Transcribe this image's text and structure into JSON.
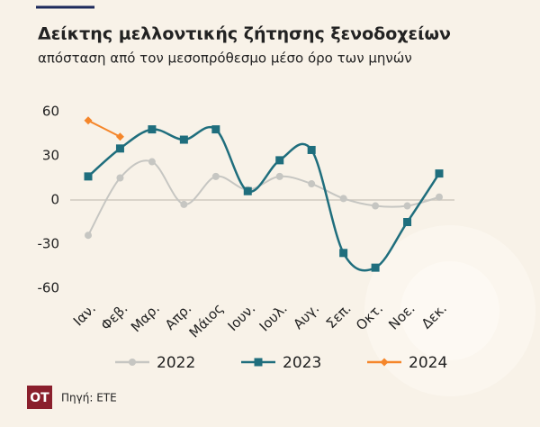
{
  "chart_data": {
    "type": "line",
    "title": "Δείκτης μελλοντικής ζήτησης ξενοδοχείων",
    "subtitle": "απόσταση από τον μεσοπρόθεσμο μέσο όρο των μηνών",
    "categories": [
      "Ιαν.",
      "Φεβ.",
      "Μαρ.",
      "Απρ.",
      "Μάιος",
      "Ιουν.",
      "Ιουλ.",
      "Αυγ.",
      "Σεπ.",
      "Οκτ.",
      "Νοε.",
      "Δεκ."
    ],
    "series": [
      {
        "name": "2022",
        "color": "#c6c6c2",
        "values": [
          -24,
          15,
          26,
          -3,
          16,
          7,
          16,
          11,
          1,
          -4,
          -4,
          2
        ]
      },
      {
        "name": "2023",
        "color": "#1f6e7d",
        "values": [
          16,
          35,
          48,
          41,
          48,
          6,
          27,
          34,
          -36,
          -46,
          -15,
          18
        ]
      },
      {
        "name": "2024",
        "color": "#f5862a",
        "values": [
          54,
          43,
          null,
          null,
          null,
          null,
          null,
          null,
          null,
          null,
          null,
          null
        ]
      }
    ],
    "ylim": [
      -60,
      60
    ],
    "yticks": [
      -60,
      -30,
      0,
      30,
      60
    ],
    "source": "Πηγή: ΕΤΕ",
    "logo": "OT"
  }
}
